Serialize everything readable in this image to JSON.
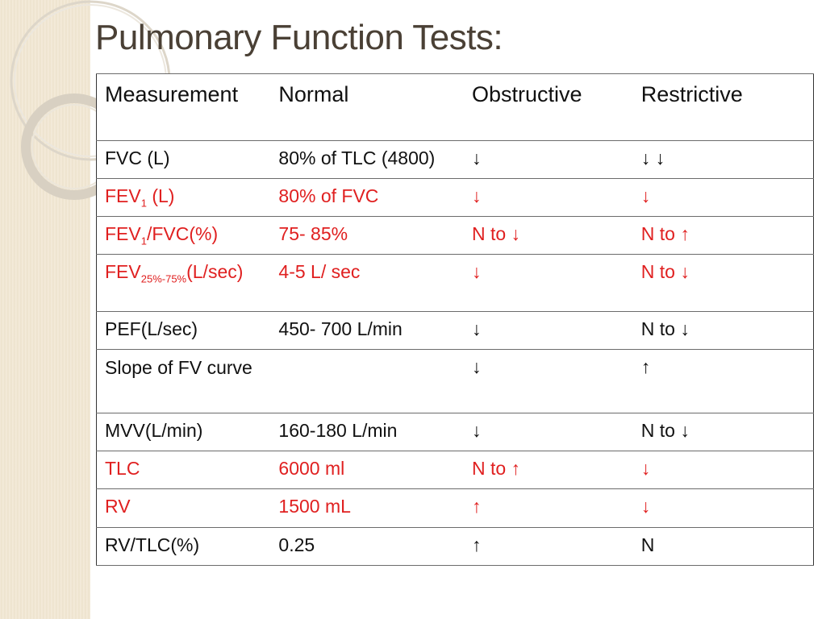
{
  "title": "Pulmonary Function Tests:",
  "table": {
    "headers": [
      "Measurement",
      "Normal",
      "Obstructive",
      "Restrictive"
    ],
    "rows": [
      {
        "measurement": "FVC (L)",
        "normal": "80% of TLC (4800)",
        "obstructive": "↓",
        "restrictive": "↓ ↓",
        "red": false
      },
      {
        "measurement_main": "FEV",
        "measurement_sub": "1",
        "measurement_tail": " (L)",
        "normal": "80% of FVC",
        "obstructive": "↓",
        "restrictive": "↓",
        "red": true
      },
      {
        "measurement_main": "FEV",
        "measurement_sub": "1",
        "measurement_tail": "/FVC(%)",
        "normal": "75- 85%",
        "obstructive": "N to ↓",
        "restrictive": "N to ↑",
        "red": true
      },
      {
        "measurement_main": "FEV",
        "measurement_sub": "25%-75%",
        "measurement_tail": "(L/sec)",
        "normal": "4-5 L/ sec",
        "obstructive": "↓",
        "restrictive": "N to ↓",
        "red": true
      },
      {
        "measurement": "PEF(L/sec)",
        "normal": "450- 700 L/min",
        "obstructive": "↓",
        "restrictive": "N to ↓",
        "red": false
      },
      {
        "measurement": "Slope of FV curve",
        "normal": "",
        "obstructive": "↓",
        "restrictive": "↑",
        "red": false
      },
      {
        "measurement": "MVV(L/min)",
        "normal": "160-180 L/min",
        "obstructive": "↓",
        "restrictive": "N to ↓",
        "red": false
      },
      {
        "measurement": "TLC",
        "normal": "6000 ml",
        "obstructive": "N to ↑",
        "restrictive": "↓",
        "red": true
      },
      {
        "measurement": "RV",
        "normal": "1500 mL",
        "obstructive": "↑",
        "restrictive": "↓",
        "red": true
      },
      {
        "measurement": "RV/TLC(%)",
        "normal": "0.25",
        "obstructive": "↑",
        "restrictive": "N",
        "red": false
      }
    ]
  },
  "colors": {
    "title": "#4a4035",
    "red_text": "#e02020",
    "strip": "#f3ead9"
  }
}
